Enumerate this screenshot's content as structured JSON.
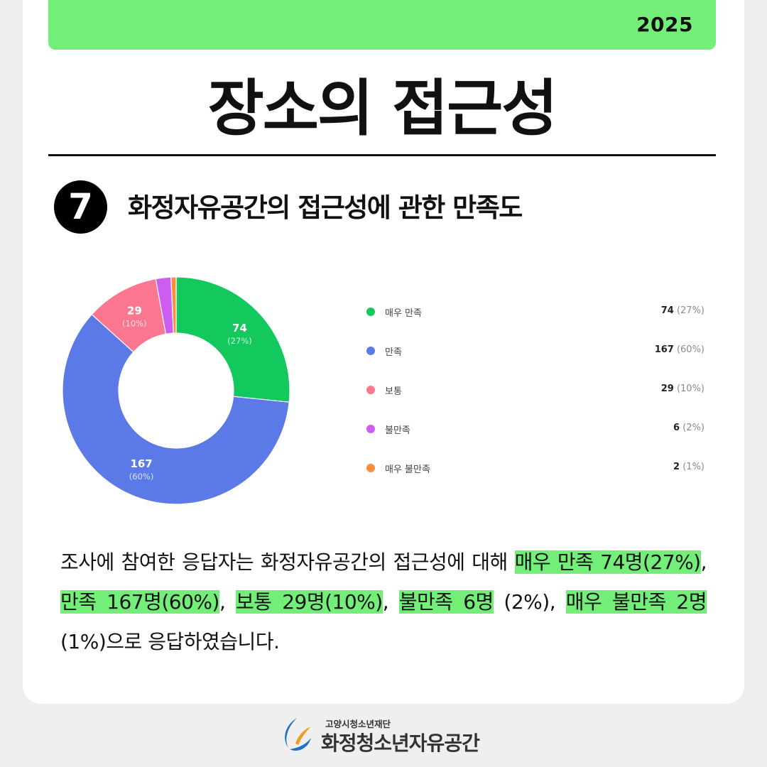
{
  "header": {
    "year": "2025"
  },
  "title": "장소의 접근성",
  "question": {
    "number": "7",
    "text": "화정자유공간의 접근성에 관한 만족도"
  },
  "chart_data": {
    "type": "pie",
    "categories": [
      "매우 만족",
      "만족",
      "보통",
      "불만족",
      "매우 불만족"
    ],
    "values": [
      74,
      167,
      29,
      6,
      2
    ],
    "percent_labels": [
      "(27%)",
      "(60%)",
      "(10%)",
      "(2%)",
      "(1%)"
    ],
    "colors": [
      "#13c95e",
      "#5b7ae8",
      "#fb7790",
      "#cd5df0",
      "#fb8c3e"
    ],
    "legend_position": "right"
  },
  "description": {
    "t1": "조사에 참여한 응답자는 화정자유공간의 접근성에 대해 ",
    "h1": "매우 만족 74명(27%)",
    "t2": ", ",
    "h2": "만족 167명(60%)",
    "t3": ", ",
    "h3": "보통 29명(10%)",
    "t4": ", ",
    "h4": "불만족 6명",
    "t5": " (2%), ",
    "h5": "매우 불만족 2명",
    "t6": "(1%)으로 응답하였습니다."
  },
  "footer": {
    "org": "고양시청소년재단",
    "name": "화정청소년자유공간"
  }
}
